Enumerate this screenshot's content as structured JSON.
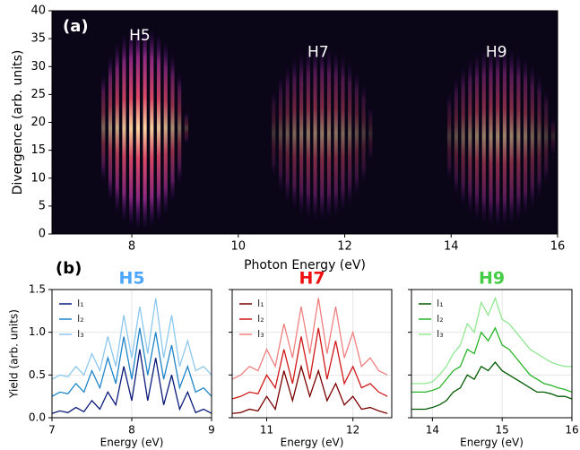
{
  "chart_data": [
    {
      "type": "heatmap",
      "panel_label": "(a)",
      "xlabel": "Photon Energy (eV)",
      "ylabel": "Divergence (arb. units)",
      "xlim": [
        6.5,
        16
      ],
      "ylim": [
        0,
        40
      ],
      "xticks": [
        8,
        10,
        12,
        14,
        16
      ],
      "yticks": [
        0,
        5,
        10,
        15,
        20,
        25,
        30,
        35,
        40
      ],
      "background": "#0b0518",
      "blobs": [
        {
          "label": "H5",
          "x": [
            7.3,
            9.0
          ],
          "y": [
            5,
            33
          ],
          "intensity": 1.0
        },
        {
          "label": "H7",
          "x": [
            10.5,
            12.5
          ],
          "y": [
            6,
            30
          ],
          "intensity": 0.55
        },
        {
          "label": "H9",
          "x": [
            13.8,
            15.9
          ],
          "y": [
            5,
            30
          ],
          "intensity": 0.6
        }
      ]
    },
    {
      "type": "line",
      "panel_label": "(b)",
      "title": "H5",
      "title_color": "#4da6ff",
      "xlabel": "Energy (eV)",
      "ylabel": "Yield (arb. units)",
      "xlim": [
        7,
        9
      ],
      "ylim": [
        0,
        1.5
      ],
      "xticks": [
        7,
        8,
        9
      ],
      "yticks": [
        {
          "value": 0,
          "label": "0.0"
        },
        {
          "value": 0.5,
          "label": "0.5"
        },
        {
          "value": 1,
          "label": "1.0"
        },
        {
          "value": 1.5,
          "label": "1.5"
        }
      ],
      "show_ytick_labels": true,
      "grid": true,
      "legend": "upper left",
      "x": [
        7.0,
        7.1,
        7.2,
        7.3,
        7.4,
        7.5,
        7.6,
        7.7,
        7.8,
        7.9,
        8.0,
        8.1,
        8.2,
        8.3,
        8.4,
        8.5,
        8.6,
        8.7,
        8.8,
        8.9,
        9.0
      ],
      "series": [
        {
          "name": "I₁",
          "color": "#0a1a7a",
          "values": [
            0.05,
            0.08,
            0.06,
            0.12,
            0.07,
            0.2,
            0.1,
            0.3,
            0.15,
            0.6,
            0.2,
            0.8,
            0.2,
            0.7,
            0.15,
            0.5,
            0.1,
            0.3,
            0.06,
            0.1,
            0.05
          ]
        },
        {
          "name": "I₂",
          "color": "#1f85c8",
          "values": [
            0.25,
            0.3,
            0.28,
            0.4,
            0.3,
            0.55,
            0.35,
            0.7,
            0.4,
            0.95,
            0.45,
            1.05,
            0.5,
            1.0,
            0.45,
            0.85,
            0.35,
            0.6,
            0.3,
            0.35,
            0.25
          ]
        },
        {
          "name": "I₃",
          "color": "#8cc8ee",
          "values": [
            0.45,
            0.5,
            0.48,
            0.6,
            0.5,
            0.75,
            0.55,
            0.95,
            0.6,
            1.2,
            0.7,
            1.3,
            0.75,
            1.4,
            0.7,
            1.2,
            0.6,
            0.9,
            0.55,
            0.6,
            0.5
          ]
        }
      ]
    },
    {
      "type": "line",
      "title": "H7",
      "title_color": "#ee1111",
      "xlabel": "Energy (eV)",
      "xlim": [
        10.6,
        12.45
      ],
      "ylim": [
        0,
        1.5
      ],
      "xticks": [
        11,
        12
      ],
      "yticks": [
        0,
        0.5,
        1,
        1.5
      ],
      "show_ytick_labels": false,
      "grid": true,
      "legend": "upper left",
      "x": [
        10.6,
        10.7,
        10.8,
        10.9,
        11.0,
        11.1,
        11.2,
        11.3,
        11.4,
        11.5,
        11.6,
        11.7,
        11.8,
        11.9,
        12.0,
        12.1,
        12.2,
        12.3,
        12.4
      ],
      "series": [
        {
          "name": "I₁",
          "color": "#7a0000",
          "values": [
            0.05,
            0.06,
            0.1,
            0.08,
            0.25,
            0.1,
            0.55,
            0.2,
            0.6,
            0.25,
            0.55,
            0.2,
            0.4,
            0.15,
            0.25,
            0.1,
            0.12,
            0.08,
            0.05
          ]
        },
        {
          "name": "I₂",
          "color": "#d01818",
          "values": [
            0.22,
            0.25,
            0.3,
            0.28,
            0.5,
            0.35,
            0.8,
            0.4,
            0.95,
            0.45,
            1.05,
            0.45,
            0.9,
            0.4,
            0.6,
            0.35,
            0.4,
            0.3,
            0.25
          ]
        },
        {
          "name": "I₃",
          "color": "#f08080",
          "values": [
            0.45,
            0.5,
            0.6,
            0.55,
            0.8,
            0.6,
            1.1,
            0.7,
            1.3,
            0.75,
            1.4,
            0.75,
            1.3,
            0.7,
            1.0,
            0.6,
            0.7,
            0.55,
            0.5
          ]
        }
      ]
    },
    {
      "type": "line",
      "title": "H9",
      "title_color": "#44cc44",
      "xlabel": "Energy (eV)",
      "xlim": [
        13.7,
        16
      ],
      "ylim": [
        0,
        1.5
      ],
      "xticks": [
        14,
        15,
        16
      ],
      "yticks": [
        0,
        0.5,
        1,
        1.5
      ],
      "show_ytick_labels": false,
      "grid": true,
      "legend": "upper left",
      "x": [
        13.7,
        13.8,
        13.9,
        14.0,
        14.1,
        14.2,
        14.3,
        14.4,
        14.5,
        14.6,
        14.7,
        14.8,
        14.9,
        15.0,
        15.1,
        15.2,
        15.3,
        15.4,
        15.5,
        15.6,
        15.7,
        15.8,
        15.9,
        16.0
      ],
      "series": [
        {
          "name": "I₁",
          "color": "#005a00",
          "values": [
            0.1,
            0.1,
            0.1,
            0.12,
            0.15,
            0.2,
            0.3,
            0.35,
            0.5,
            0.45,
            0.6,
            0.55,
            0.65,
            0.55,
            0.5,
            0.45,
            0.4,
            0.35,
            0.3,
            0.3,
            0.28,
            0.25,
            0.25,
            0.22
          ]
        },
        {
          "name": "I₂",
          "color": "#28b428",
          "values": [
            0.3,
            0.3,
            0.3,
            0.32,
            0.35,
            0.45,
            0.55,
            0.6,
            0.8,
            0.75,
            1.0,
            0.9,
            1.05,
            0.85,
            0.8,
            0.7,
            0.6,
            0.5,
            0.45,
            0.4,
            0.38,
            0.35,
            0.33,
            0.3
          ]
        },
        {
          "name": "I₃",
          "color": "#90e890",
          "values": [
            0.4,
            0.4,
            0.4,
            0.42,
            0.5,
            0.6,
            0.75,
            0.85,
            1.1,
            1.0,
            1.35,
            1.2,
            1.4,
            1.15,
            1.1,
            1.0,
            0.9,
            0.8,
            0.75,
            0.7,
            0.65,
            0.62,
            0.6,
            0.6
          ]
        }
      ]
    }
  ]
}
